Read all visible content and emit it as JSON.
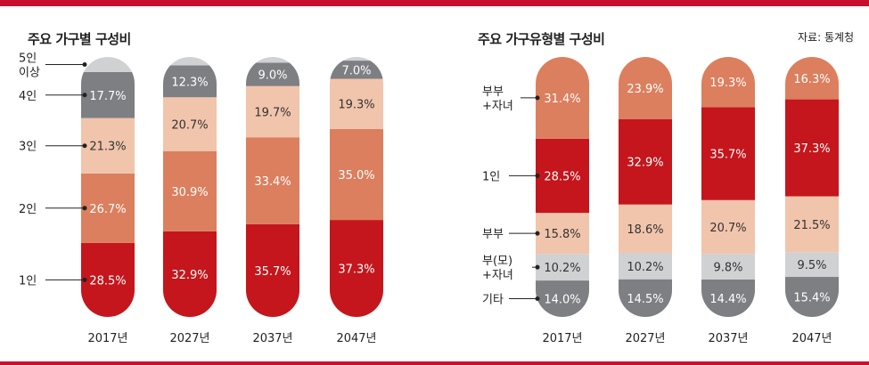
{
  "chart_data": [
    {
      "type": "bar",
      "stacked": true,
      "title": "주요 가구별 구성비",
      "categories": [
        "2017년",
        "2027년",
        "2037년",
        "2047년"
      ],
      "segment_labels": [
        "1인",
        "2인",
        "3인",
        "4인",
        "5인\n이상"
      ],
      "series": [
        {
          "name": "1인",
          "color": "#c4161c",
          "values": [
            28.5,
            32.9,
            35.7,
            37.3
          ],
          "labels": [
            "28.5%",
            "32.9%",
            "35.7%",
            "37.3%"
          ]
        },
        {
          "name": "2인",
          "color": "#dc7f5e",
          "values": [
            26.7,
            30.9,
            33.4,
            35.0
          ],
          "labels": [
            "26.7%",
            "30.9%",
            "33.4%",
            "35.0%"
          ]
        },
        {
          "name": "3인",
          "color": "#f1c4ac",
          "values": [
            21.3,
            20.7,
            19.7,
            19.3
          ],
          "labels": [
            "21.3%",
            "20.7%",
            "19.7%",
            "19.3%"
          ]
        },
        {
          "name": "4인",
          "color": "#7d7f82",
          "values": [
            17.7,
            12.3,
            9.0,
            7.0
          ],
          "labels": [
            "17.7%",
            "12.3%",
            "9.0%",
            "7.0%"
          ]
        },
        {
          "name": "5인 이상",
          "color": "#cfd1d3",
          "values": [
            5.8,
            3.2,
            2.2,
            1.4
          ],
          "labels": [
            "",
            "",
            "",
            ""
          ]
        }
      ],
      "ylim": [
        0,
        100
      ]
    },
    {
      "type": "bar",
      "stacked": true,
      "title": "주요 가구유형별 구성비",
      "source": "자료: 통계청",
      "categories": [
        "2017년",
        "2027년",
        "2037년",
        "2047년"
      ],
      "segment_labels": [
        "부부\n+자녀",
        "1인",
        "부부",
        "부(모)\n+자녀",
        "기타"
      ],
      "series": [
        {
          "name": "기타",
          "color": "#7d7f82",
          "values": [
            14.0,
            14.5,
            14.4,
            15.4
          ],
          "labels": [
            "14.0%",
            "14.5%",
            "14.4%",
            "15.4%"
          ]
        },
        {
          "name": "부(모)+자녀",
          "color": "#cfd1d3",
          "values": [
            10.2,
            10.2,
            9.8,
            9.5
          ],
          "labels": [
            "10.2%",
            "10.2%",
            "9.8%",
            "9.5%"
          ]
        },
        {
          "name": "부부",
          "color": "#f1c4ac",
          "values": [
            15.8,
            18.6,
            20.7,
            21.5
          ],
          "labels": [
            "15.8%",
            "18.6%",
            "20.7%",
            "21.5%"
          ]
        },
        {
          "name": "1인",
          "color": "#c4161c",
          "values": [
            28.5,
            32.9,
            35.7,
            37.3
          ],
          "labels": [
            "28.5%",
            "32.9%",
            "35.7%",
            "37.3%"
          ]
        },
        {
          "name": "부부+자녀",
          "color": "#dc7f5e",
          "values": [
            31.4,
            23.9,
            19.3,
            16.3
          ],
          "labels": [
            "31.4%",
            "23.9%",
            "19.3%",
            "16.3%"
          ]
        }
      ],
      "ylim": [
        0,
        100
      ]
    }
  ]
}
